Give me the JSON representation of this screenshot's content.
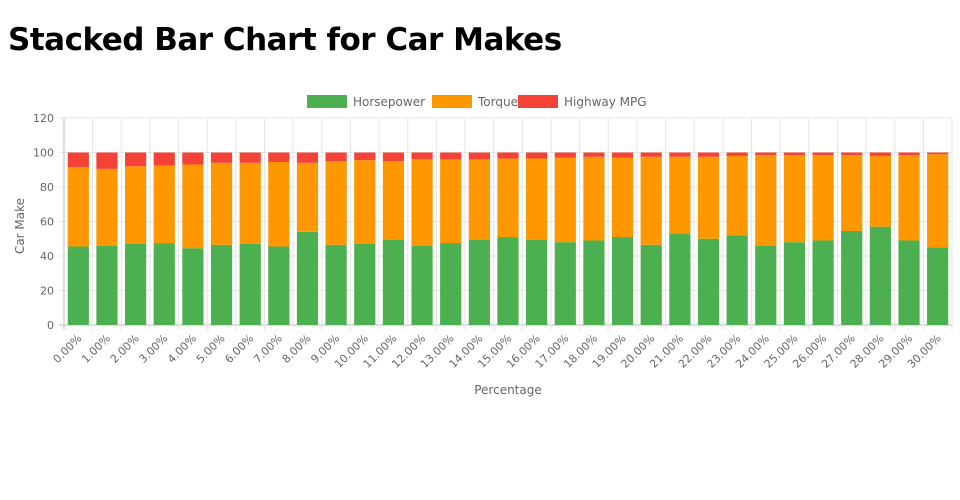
{
  "page": {
    "title": "Stacked Bar Chart for Car Makes"
  },
  "chart_data": {
    "type": "bar",
    "stacked": true,
    "title": "Stacked Bar Chart for Car Makes",
    "xlabel": "Percentage",
    "ylabel": "Car Make",
    "ylim": [
      0,
      120
    ],
    "yticks": [
      0,
      20,
      40,
      60,
      80,
      100,
      120
    ],
    "grid": true,
    "legend_position": "top-center",
    "categories": [
      "0.00%",
      "1.00%",
      "2.00%",
      "3.00%",
      "4.00%",
      "5.00%",
      "6.00%",
      "7.00%",
      "8.00%",
      "9.00%",
      "10.00%",
      "11.00%",
      "12.00%",
      "13.00%",
      "14.00%",
      "15.00%",
      "16.00%",
      "17.00%",
      "18.00%",
      "19.00%",
      "20.00%",
      "21.00%",
      "22.00%",
      "23.00%",
      "24.00%",
      "25.00%",
      "26.00%",
      "27.00%",
      "28.00%",
      "29.00%",
      "30.00%"
    ],
    "series": [
      {
        "name": "Horsepower",
        "color": "#4caf50",
        "values": [
          45.5,
          46,
          47,
          47.5,
          44.5,
          46.5,
          47,
          45.5,
          54,
          46.5,
          47,
          49.5,
          46,
          47.5,
          49.5,
          51,
          49.5,
          48,
          49,
          51,
          46.5,
          53,
          50,
          52,
          46,
          48,
          49,
          54.5,
          57,
          49,
          45
        ]
      },
      {
        "name": "Torque",
        "color": "#ff9800",
        "values": [
          46,
          44.5,
          45,
          45,
          48.5,
          47.5,
          47,
          49,
          40,
          48.5,
          48.5,
          45.5,
          50,
          48.5,
          46.5,
          45.5,
          47,
          49,
          48.5,
          46,
          51,
          44.5,
          47.5,
          46,
          52.5,
          50.5,
          49.5,
          44,
          41,
          49.5,
          54
        ]
      },
      {
        "name": "Highway MPG",
        "color": "#f44336",
        "values": [
          8.5,
          9.5,
          8,
          7.5,
          7,
          6,
          6,
          5.5,
          6,
          5,
          4.5,
          5,
          4,
          4,
          4,
          3.5,
          3.5,
          3,
          2.5,
          3,
          2.5,
          2.5,
          2.5,
          2,
          1.5,
          1.5,
          1.5,
          1.5,
          2,
          1.5,
          1
        ]
      }
    ]
  }
}
